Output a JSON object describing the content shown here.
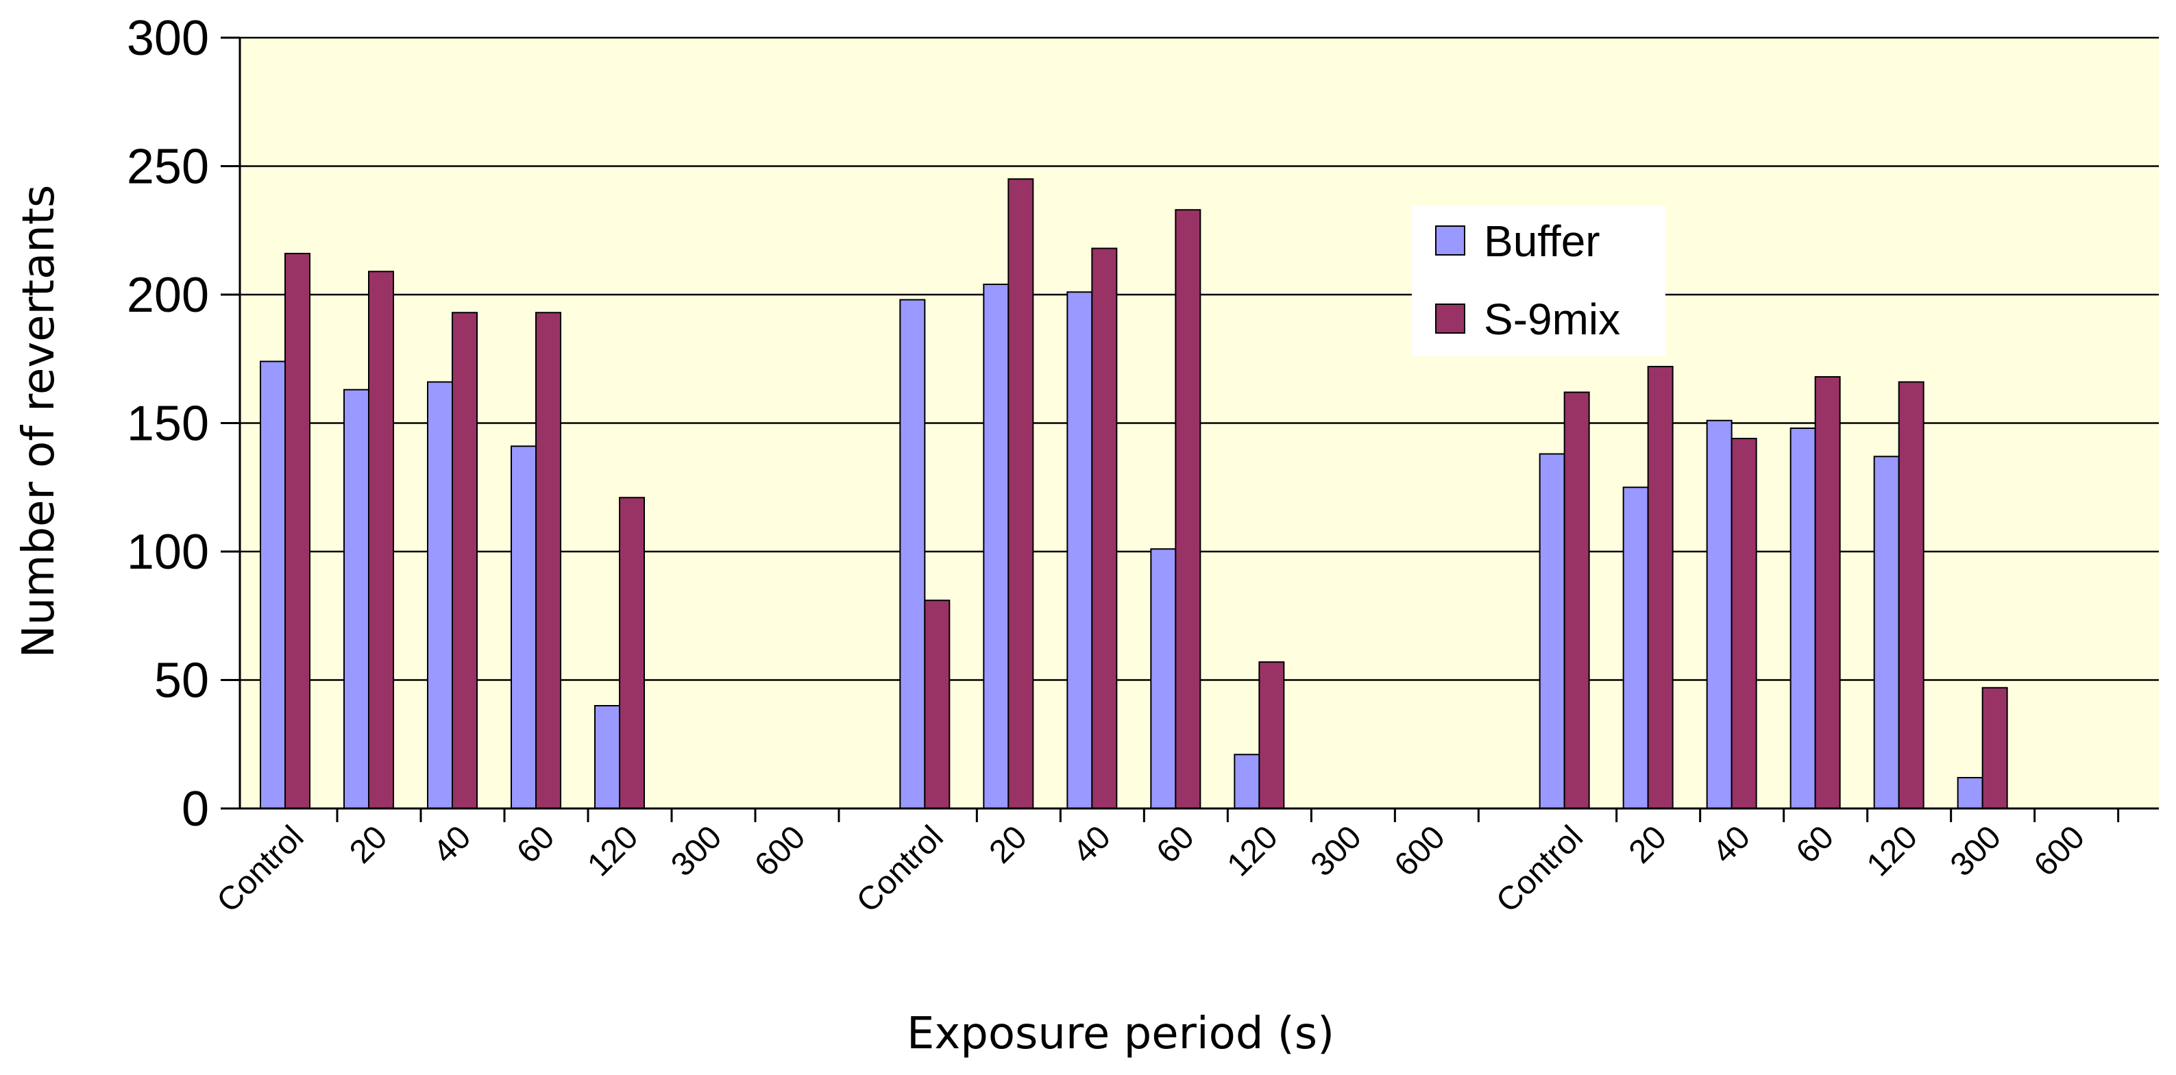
{
  "chart_data": {
    "type": "bar",
    "title": "",
    "xlabel": "Exposure period (s)",
    "ylabel": "Number of revertants",
    "ylim": [
      0,
      300
    ],
    "yticks": [
      "0",
      "50",
      "100",
      "150",
      "200",
      "250",
      "300"
    ],
    "grid": true,
    "legend_position": "top-right",
    "groups": [
      {
        "categories": [
          "Control",
          "20",
          "40",
          "60",
          "120",
          "300",
          "600"
        ],
        "series": [
          {
            "name": "Buffer",
            "values": [
              174,
              163,
              166,
              141,
              40,
              null,
              null
            ]
          },
          {
            "name": "S-9mix",
            "values": [
              216,
              209,
              193,
              193,
              121,
              null,
              null
            ]
          }
        ]
      },
      {
        "categories": [
          "Control",
          "20",
          "40",
          "60",
          "120",
          "300",
          "600"
        ],
        "series": [
          {
            "name": "Buffer",
            "values": [
              198,
              204,
              201,
              101,
              21,
              null,
              null
            ]
          },
          {
            "name": "S-9mix",
            "values": [
              81,
              245,
              218,
              233,
              57,
              null,
              null
            ]
          }
        ]
      },
      {
        "categories": [
          "Control",
          "20",
          "40",
          "60",
          "120",
          "300",
          "600"
        ],
        "series": [
          {
            "name": "Buffer",
            "values": [
              138,
              125,
              151,
              148,
              137,
              12,
              null
            ]
          },
          {
            "name": "S-9mix",
            "values": [
              162,
              172,
              144,
              168,
              166,
              47,
              null
            ]
          }
        ]
      }
    ],
    "legend": [
      {
        "name": "Buffer",
        "color": "#9999ff"
      },
      {
        "name": "S-9mix",
        "color": "#993366"
      }
    ]
  }
}
